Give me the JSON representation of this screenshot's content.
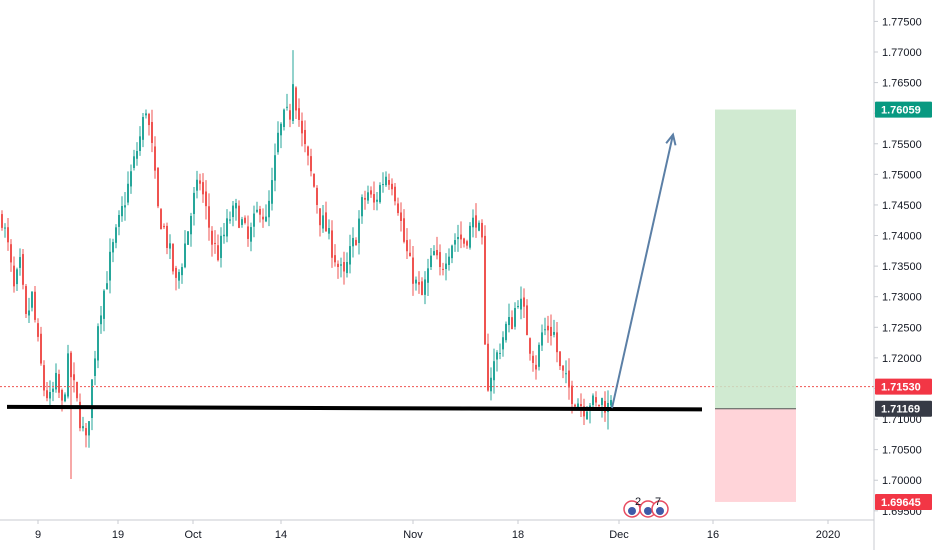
{
  "chart_data": {
    "type": "candlestick",
    "title": "",
    "xlabel": "",
    "ylabel": "",
    "ylim": [
      1.6935,
      1.7785
    ],
    "y_ticks": [
      "1.69500",
      "1.70000",
      "1.70500",
      "1.71000",
      "1.71500",
      "1.72000",
      "1.72500",
      "1.73000",
      "1.73500",
      "1.74000",
      "1.74500",
      "1.75000",
      "1.75500",
      "1.76000",
      "1.76500",
      "1.77000",
      "1.77500"
    ],
    "x_ticks": [
      "9",
      "19",
      "Oct",
      "14",
      "Nov",
      "18",
      "Dec",
      "16",
      "2020"
    ],
    "grid": false,
    "up_color": "#26a69a",
    "down_color": "#ef5350",
    "ohlc_anchors": [
      [
        0,
        1.743
      ],
      [
        2,
        1.738
      ],
      [
        4,
        1.731
      ],
      [
        6,
        1.735
      ],
      [
        8,
        1.726
      ],
      [
        10,
        1.73
      ],
      [
        12,
        1.722
      ],
      [
        14,
        1.715
      ],
      [
        16,
        1.713
      ],
      [
        18,
        1.716
      ],
      [
        20,
        1.712
      ],
      [
        22,
        1.719
      ],
      [
        24,
        1.715
      ],
      [
        26,
        1.71
      ],
      [
        28,
        1.706
      ],
      [
        30,
        1.716
      ],
      [
        32,
        1.726
      ],
      [
        34,
        1.731
      ],
      [
        36,
        1.736
      ],
      [
        38,
        1.74
      ],
      [
        40,
        1.744
      ],
      [
        42,
        1.748
      ],
      [
        44,
        1.752
      ],
      [
        46,
        1.756
      ],
      [
        48,
        1.761
      ],
      [
        50,
        1.754
      ],
      [
        52,
        1.744
      ],
      [
        54,
        1.741
      ],
      [
        56,
        1.737
      ],
      [
        58,
        1.732
      ],
      [
        60,
        1.736
      ],
      [
        62,
        1.741
      ],
      [
        64,
        1.746
      ],
      [
        66,
        1.749
      ],
      [
        68,
        1.744
      ],
      [
        70,
        1.739
      ],
      [
        72,
        1.737
      ],
      [
        74,
        1.74
      ],
      [
        76,
        1.743
      ],
      [
        78,
        1.744
      ],
      [
        80,
        1.742
      ],
      [
        82,
        1.739
      ],
      [
        84,
        1.742
      ],
      [
        86,
        1.745
      ],
      [
        88,
        1.742
      ],
      [
        90,
        1.748
      ],
      [
        92,
        1.756
      ],
      [
        94,
        1.759
      ],
      [
        96,
        1.76
      ],
      [
        97,
        1.766
      ],
      [
        98,
        1.762
      ],
      [
        100,
        1.756
      ],
      [
        102,
        1.752
      ],
      [
        104,
        1.748
      ],
      [
        106,
        1.743
      ],
      [
        108,
        1.741
      ],
      [
        110,
        1.738
      ],
      [
        112,
        1.735
      ],
      [
        114,
        1.733
      ],
      [
        116,
        1.737
      ],
      [
        118,
        1.74
      ],
      [
        120,
        1.745
      ],
      [
        122,
        1.747
      ],
      [
        124,
        1.745
      ],
      [
        126,
        1.748
      ],
      [
        128,
        1.75
      ],
      [
        130,
        1.749
      ],
      [
        132,
        1.745
      ],
      [
        134,
        1.739
      ],
      [
        136,
        1.735
      ],
      [
        138,
        1.732
      ],
      [
        140,
        1.73
      ],
      [
        142,
        1.734
      ],
      [
        144,
        1.737
      ],
      [
        146,
        1.734
      ],
      [
        148,
        1.737
      ],
      [
        150,
        1.739
      ],
      [
        152,
        1.74
      ],
      [
        154,
        1.739
      ],
      [
        156,
        1.741
      ],
      [
        158,
        1.743
      ],
      [
        160,
        1.738
      ],
      [
        161,
        1.721
      ],
      [
        162,
        1.716
      ],
      [
        164,
        1.719
      ],
      [
        166,
        1.722
      ],
      [
        168,
        1.725
      ],
      [
        170,
        1.726
      ],
      [
        172,
        1.73
      ],
      [
        174,
        1.727
      ],
      [
        176,
        1.722
      ],
      [
        178,
        1.719
      ],
      [
        180,
        1.724
      ],
      [
        182,
        1.725
      ],
      [
        184,
        1.724
      ],
      [
        186,
        1.718
      ],
      [
        188,
        1.716
      ],
      [
        190,
        1.714
      ],
      [
        192,
        1.713
      ],
      [
        194,
        1.712
      ],
      [
        196,
        1.713
      ],
      [
        198,
        1.712
      ],
      [
        200,
        1.713
      ],
      [
        202,
        1.712
      ],
      [
        203,
        1.714
      ]
    ],
    "support_level": 1.71169,
    "support_from": 0,
    "support_to": 234,
    "projection_from": [
      203,
      1.7118
    ],
    "projection_to": [
      224,
      1.7565
    ],
    "zones": {
      "from": 238,
      "to": 265,
      "target": 1.76059,
      "entry": 1.71169,
      "stop": 1.69645,
      "target_fill": "#c8e6c9",
      "stop_fill": "#ffcdd2"
    },
    "price_badges": [
      {
        "label": "1.76059",
        "value": 1.76059,
        "color": "#089981"
      },
      {
        "label": "1.71530",
        "value": 1.7153,
        "color": "#f23645"
      },
      {
        "label": "1.71169",
        "value": 1.71169,
        "color": "#363a45"
      },
      {
        "label": "1.69645",
        "value": 1.69645,
        "color": "#f23645"
      }
    ],
    "last_price": 1.7153,
    "event_markers": [
      "2",
      "7"
    ]
  }
}
